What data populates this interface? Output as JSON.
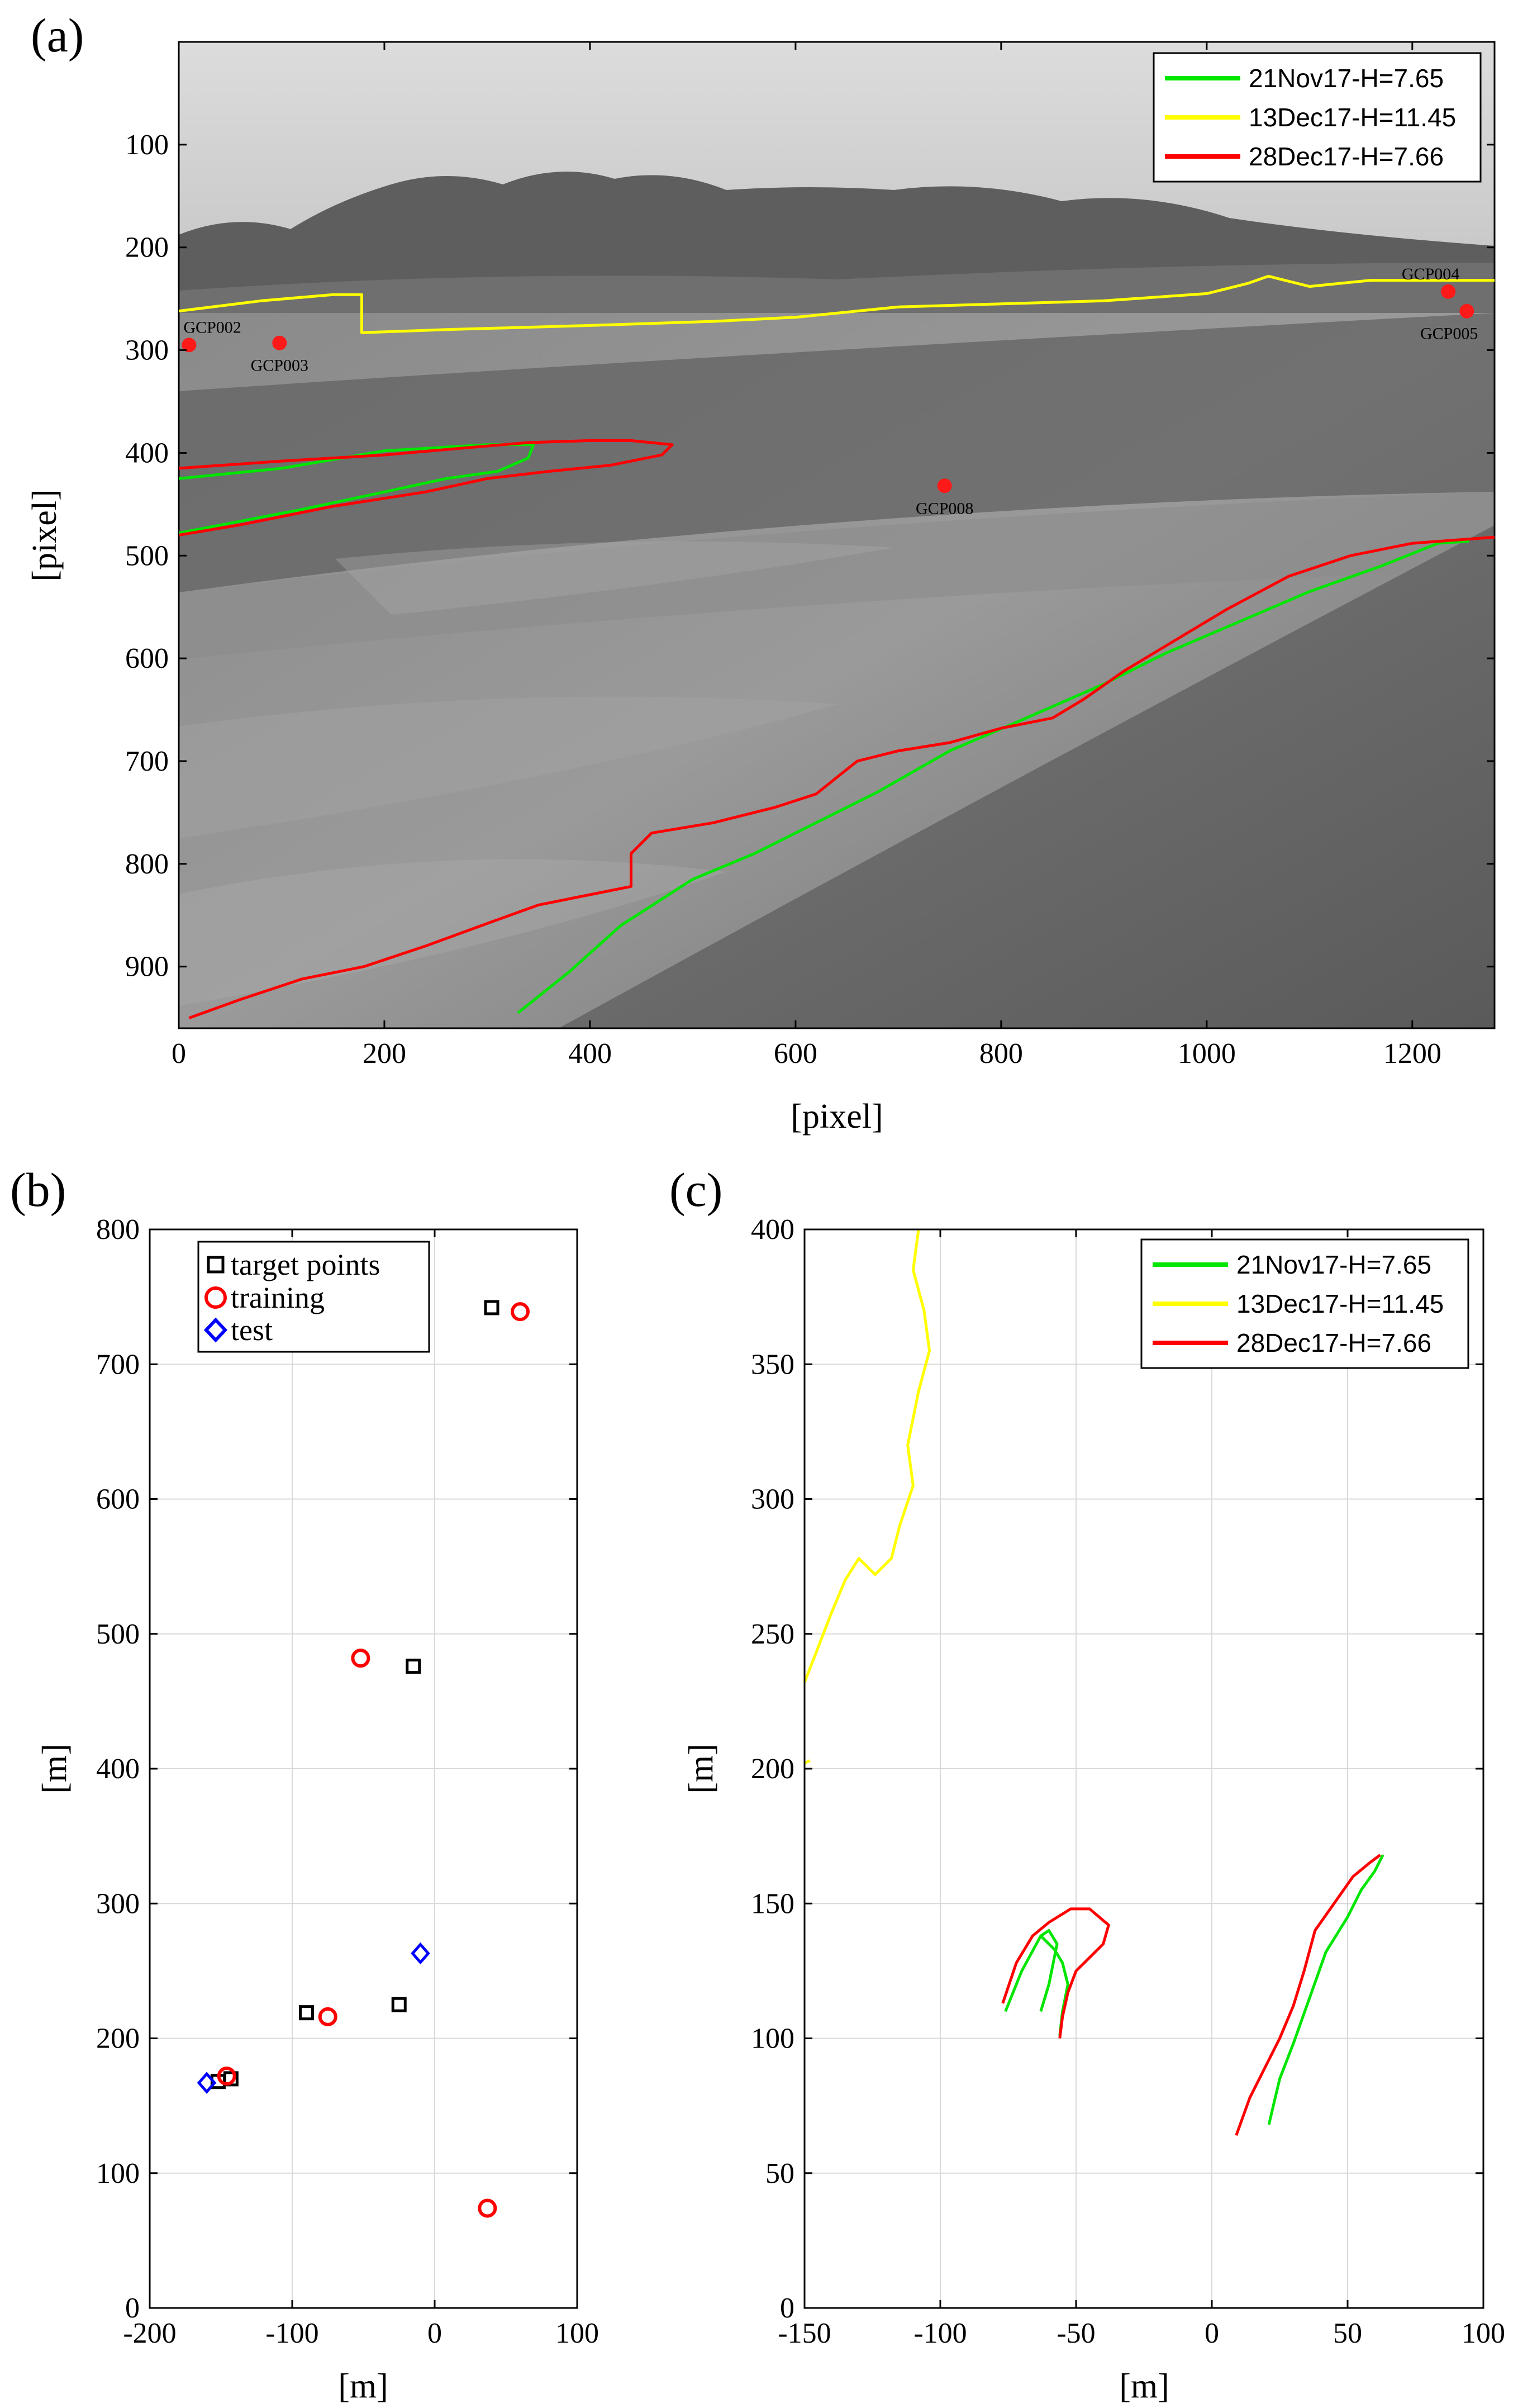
{
  "chart_data": [
    {
      "panel": "(a)",
      "type": "line",
      "xlabel": "[pixel]",
      "ylabel": "[pixel]",
      "xlim": [
        0,
        1280
      ],
      "ylim": [
        960,
        0
      ],
      "xticks": [
        0,
        200,
        400,
        600,
        800,
        1000,
        1200
      ],
      "yticks": [
        100,
        200,
        300,
        400,
        500,
        600,
        700,
        800,
        900
      ],
      "background": "grayscale river photograph",
      "legend": "top-right",
      "series": [
        {
          "name": "21Nov17-H=7.65",
          "color": "#00e600",
          "segments": [
            [
              [
                0,
                425
              ],
              [
                100,
                415
              ],
              [
                200,
                398
              ],
              [
                300,
                392
              ],
              [
                345,
                392
              ],
              [
                340,
                405
              ],
              [
                310,
                418
              ],
              [
                260,
                425
              ],
              [
                200,
                438
              ],
              [
                120,
                455
              ],
              [
                0,
                478
              ]
            ],
            [
              [
                330,
                945
              ],
              [
                380,
                905
              ],
              [
                430,
                860
              ],
              [
                500,
                815
              ],
              [
                560,
                790
              ],
              [
                620,
                760
              ],
              [
                680,
                730
              ],
              [
                750,
                690
              ],
              [
                820,
                660
              ],
              [
                900,
                625
              ],
              [
                960,
                595
              ],
              [
                1030,
                565
              ],
              [
                1100,
                535
              ],
              [
                1170,
                510
              ],
              [
                1225,
                488
              ],
              [
                1255,
                486
              ]
            ]
          ]
        },
        {
          "name": "13Dec17-H=11.45",
          "color": "#ffff00",
          "segments": [
            [
              [
                0,
                262
              ],
              [
                80,
                252
              ],
              [
                150,
                246
              ],
              [
                178,
                246
              ],
              [
                178,
                283
              ],
              [
                260,
                280
              ],
              [
                400,
                276
              ],
              [
                520,
                272
              ],
              [
                600,
                268
              ],
              [
                700,
                258
              ],
              [
                800,
                255
              ],
              [
                900,
                252
              ],
              [
                1000,
                245
              ],
              [
                1040,
                235
              ],
              [
                1060,
                228
              ],
              [
                1100,
                238
              ],
              [
                1160,
                232
              ],
              [
                1200,
                232
              ],
              [
                1280,
                232
              ]
            ]
          ]
        },
        {
          "name": "28Dec17-H=7.66",
          "color": "#ff0000",
          "segments": [
            [
              [
                0,
                415
              ],
              [
                100,
                408
              ],
              [
                200,
                402
              ],
              [
                280,
                395
              ],
              [
                340,
                390
              ],
              [
                400,
                388
              ],
              [
                440,
                388
              ],
              [
                480,
                392
              ],
              [
                470,
                402
              ],
              [
                420,
                412
              ],
              [
                360,
                418
              ],
              [
                300,
                425
              ],
              [
                240,
                438
              ],
              [
                150,
                452
              ],
              [
                60,
                470
              ],
              [
                0,
                480
              ]
            ],
            [
              [
                10,
                950
              ],
              [
                60,
                932
              ],
              [
                120,
                912
              ],
              [
                180,
                900
              ],
              [
                240,
                880
              ],
              [
                300,
                858
              ],
              [
                350,
                840
              ],
              [
                400,
                830
              ],
              [
                440,
                822
              ],
              [
                440,
                790
              ],
              [
                460,
                770
              ],
              [
                520,
                760
              ],
              [
                580,
                745
              ],
              [
                620,
                732
              ],
              [
                660,
                700
              ],
              [
                700,
                690
              ],
              [
                750,
                682
              ],
              [
                800,
                668
              ],
              [
                850,
                658
              ],
              [
                880,
                640
              ],
              [
                920,
                612
              ],
              [
                970,
                582
              ],
              [
                1020,
                552
              ],
              [
                1080,
                520
              ],
              [
                1140,
                500
              ],
              [
                1200,
                488
              ],
              [
                1280,
                482
              ]
            ]
          ]
        }
      ],
      "points": [
        {
          "label": "GCP002",
          "x": 10,
          "y": 295
        },
        {
          "label": "GCP003",
          "x": 98,
          "y": 293
        },
        {
          "label": "GCP004",
          "x": 1235,
          "y": 243
        },
        {
          "label": "GCP005",
          "x": 1253,
          "y": 262
        },
        {
          "label": "GCP008",
          "x": 745,
          "y": 432
        }
      ]
    },
    {
      "panel": "(b)",
      "type": "scatter",
      "xlabel": "[m]",
      "ylabel": "[m]",
      "xlim": [
        -200,
        100
      ],
      "ylim": [
        0,
        800
      ],
      "xticks": [
        -200,
        -100,
        0,
        100
      ],
      "yticks": [
        0,
        100,
        200,
        300,
        400,
        500,
        600,
        700,
        800
      ],
      "grid": true,
      "legend": "top-left",
      "series": [
        {
          "name": "target points",
          "marker": "square",
          "color": "#000000",
          "points": [
            [
              40,
              742
            ],
            [
              -15,
              476
            ],
            [
              -90,
              219
            ],
            [
              -25,
              225
            ],
            [
              -143,
              170
            ],
            [
              -152,
              168
            ]
          ]
        },
        {
          "name": "training",
          "marker": "circle",
          "color": "#ff0000",
          "points": [
            [
              60,
              739
            ],
            [
              -52,
              482
            ],
            [
              -75,
              216
            ],
            [
              -146,
              172
            ],
            [
              37,
              74
            ]
          ]
        },
        {
          "name": "test",
          "marker": "diamond",
          "color": "#0000ff",
          "points": [
            [
              -10,
              263
            ],
            [
              -160,
              167
            ]
          ]
        }
      ]
    },
    {
      "panel": "(c)",
      "type": "line",
      "xlabel": "[m]",
      "ylabel": "[m]",
      "xlim": [
        -150,
        100
      ],
      "ylim": [
        0,
        400
      ],
      "xticks": [
        -150,
        -100,
        -50,
        0,
        50,
        100
      ],
      "yticks": [
        0,
        50,
        100,
        150,
        200,
        250,
        300,
        350,
        400
      ],
      "grid": true,
      "legend": "top-right",
      "series": [
        {
          "name": "21Nov17-H=7.65",
          "color": "#00e600",
          "segments": [
            [
              [
                -76,
                110
              ],
              [
                -70,
                125
              ],
              [
                -63,
                138
              ],
              [
                -60,
                140
              ],
              [
                -57,
                135
              ],
              [
                -60,
                120
              ],
              [
                -63,
                110
              ]
            ],
            [
              [
                -63,
                138
              ],
              [
                -58,
                133
              ],
              [
                -55,
                128
              ],
              [
                -53,
                120
              ],
              [
                -55,
                110
              ],
              [
                -56,
                101
              ]
            ],
            [
              [
                21,
                68
              ],
              [
                25,
                85
              ],
              [
                30,
                98
              ],
              [
                36,
                115
              ],
              [
                42,
                132
              ],
              [
                50,
                145
              ],
              [
                55,
                155
              ],
              [
                60,
                162
              ],
              [
                63,
                168
              ]
            ]
          ]
        },
        {
          "name": "13Dec17-H=11.45",
          "color": "#ffff00",
          "segments": [
            [
              [
                -150,
                232
              ],
              [
                -145,
                245
              ],
              [
                -140,
                258
              ],
              [
                -135,
                270
              ],
              [
                -130,
                278
              ],
              [
                -124,
                272
              ],
              [
                -118,
                278
              ],
              [
                -115,
                290
              ],
              [
                -110,
                305
              ],
              [
                -112,
                320
              ],
              [
                -108,
                340
              ],
              [
                -104,
                355
              ],
              [
                -106,
                370
              ],
              [
                -110,
                385
              ],
              [
                -108,
                400
              ]
            ],
            [
              [
                -150,
                202
              ],
              [
                -148,
                203
              ]
            ]
          ]
        },
        {
          "name": "28Dec17-H=7.66",
          "color": "#ff0000",
          "segments": [
            [
              [
                -77,
                113
              ],
              [
                -72,
                128
              ],
              [
                -66,
                138
              ],
              [
                -60,
                143
              ],
              [
                -52,
                148
              ],
              [
                -45,
                148
              ],
              [
                -38,
                142
              ],
              [
                -40,
                135
              ],
              [
                -45,
                130
              ],
              [
                -50,
                125
              ],
              [
                -53,
                117
              ],
              [
                -55,
                108
              ],
              [
                -56,
                100
              ]
            ],
            [
              [
                9,
                64
              ],
              [
                14,
                78
              ],
              [
                20,
                90
              ],
              [
                25,
                100
              ],
              [
                30,
                112
              ],
              [
                34,
                125
              ],
              [
                38,
                140
              ],
              [
                45,
                150
              ],
              [
                52,
                160
              ],
              [
                58,
                165
              ],
              [
                62,
                168
              ]
            ]
          ]
        }
      ]
    }
  ],
  "panels": {
    "a": {
      "label": "(a)"
    },
    "b": {
      "label": "(b)"
    },
    "c": {
      "label": "(c)"
    }
  },
  "legends": {
    "a": [
      "21Nov17-H=7.65",
      "13Dec17-H=11.45",
      "28Dec17-H=7.66"
    ],
    "b": [
      "target points",
      "training",
      "test"
    ],
    "c": [
      "21Nov17-H=7.65",
      "13Dec17-H=11.45",
      "28Dec17-H=7.66"
    ]
  }
}
